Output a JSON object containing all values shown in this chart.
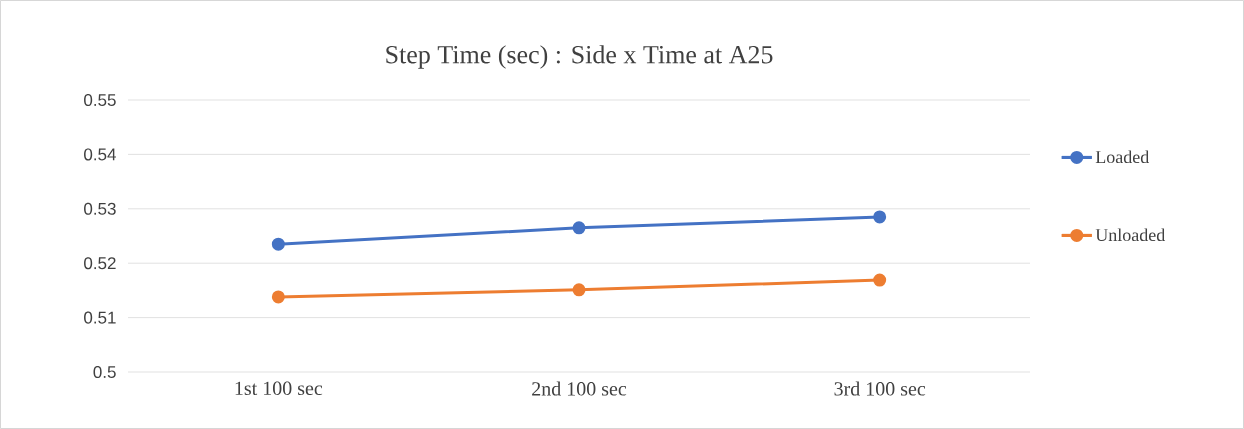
{
  "chart_data": {
    "type": "line",
    "title": "Step Time (sec) : Side x Time at A25",
    "categories": [
      "1st 100 sec",
      "2nd 100 sec",
      "3rd 100 sec"
    ],
    "series": [
      {
        "name": "Loaded",
        "color": "#4472c4",
        "values": [
          0.5235,
          0.5265,
          0.5285
        ]
      },
      {
        "name": "Unloaded",
        "color": "#ed7d31",
        "values": [
          0.5138,
          0.5151,
          0.5169
        ]
      }
    ],
    "ylim": [
      0.5,
      0.55
    ],
    "yticks": [
      0.5,
      0.51,
      0.52,
      0.53,
      0.54,
      0.55
    ],
    "grid": "y",
    "legend": "right",
    "marker": "circle",
    "line_style": "solid"
  }
}
